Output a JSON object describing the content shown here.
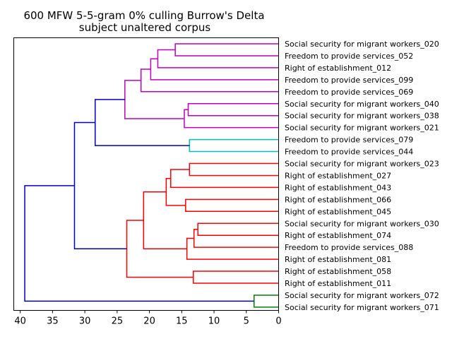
{
  "chart_data": {
    "type": "dendrogram",
    "title_line1": "600 MFW 5-5-gram 0% culling Burrow's Delta",
    "title_line2": "subject unaltered corpus",
    "xlim": [
      41,
      0
    ],
    "xticks": [
      "40",
      "35",
      "30",
      "25",
      "20",
      "15",
      "10",
      "5",
      "0"
    ],
    "leaves": [
      "Social security for migrant workers_020",
      "Freedom to provide services_052",
      "Right of establishment_012",
      "Freedom to provide services_099",
      "Freedom to provide services_069",
      "Social security for migrant workers_040",
      "Social security for migrant workers_038",
      "Social security for migrant workers_021",
      "Freedom to provide services_079",
      "Freedom to provide services_044",
      "Social security for migrant workers_023",
      "Right of establishment_027",
      "Right of establishment_043",
      "Right of establishment_066",
      "Right of establishment_045",
      "Social security for migrant workers_030",
      "Right of establishment_074",
      "Freedom to provide services_088",
      "Right of establishment_081",
      "Right of establishment_058",
      "Right of establishment_011",
      "Social security for migrant workers_072",
      "Social security for migrant workers_071"
    ],
    "colors": {
      "magenta": "#bf00bf",
      "cyan": "#00bfbf",
      "red": "#ff0000",
      "green": "#008000",
      "blue": "#0000cc"
    },
    "links": [
      {
        "a": 0,
        "b": 1,
        "h": 16.0,
        "c": "magenta"
      },
      {
        "a": "L0",
        "b": 2,
        "h": 18.7,
        "c": "magenta"
      },
      {
        "a": "L1",
        "b": 3,
        "h": 19.8,
        "c": "magenta"
      },
      {
        "a": "L2",
        "b": 4,
        "h": 21.3,
        "c": "magenta"
      },
      {
        "a": 5,
        "b": 6,
        "h": 14.0,
        "c": "magenta"
      },
      {
        "a": "L4",
        "b": 7,
        "h": 14.6,
        "c": "magenta"
      },
      {
        "a": "L3",
        "b": "L5",
        "h": 23.8,
        "c": "magenta"
      },
      {
        "a": 8,
        "b": 9,
        "h": 13.8,
        "c": "cyan"
      },
      {
        "a": "L6",
        "b": "L7",
        "h": 28.4,
        "c": "blue"
      },
      {
        "a": 10,
        "b": 11,
        "h": 13.8,
        "c": "red"
      },
      {
        "a": "L9",
        "b": 12,
        "h": 16.7,
        "c": "red"
      },
      {
        "a": 13,
        "b": 14,
        "h": 14.4,
        "c": "red"
      },
      {
        "a": "L10",
        "b": "L11",
        "h": 17.4,
        "c": "red"
      },
      {
        "a": 15,
        "b": 16,
        "h": 12.5,
        "c": "red"
      },
      {
        "a": "L13",
        "b": 17,
        "h": 13.1,
        "c": "red"
      },
      {
        "a": "L14",
        "b": 18,
        "h": 14.2,
        "c": "red"
      },
      {
        "a": "L12",
        "b": "L15",
        "h": 20.9,
        "c": "red"
      },
      {
        "a": 19,
        "b": 20,
        "h": 13.2,
        "c": "red"
      },
      {
        "a": "L16",
        "b": "L17",
        "h": 23.5,
        "c": "red"
      },
      {
        "a": "L8",
        "b": "L18",
        "h": 31.6,
        "c": "blue"
      },
      {
        "a": 21,
        "b": 22,
        "h": 3.8,
        "c": "green"
      },
      {
        "a": "L19",
        "b": "L20",
        "h": 39.3,
        "c": "blue"
      }
    ]
  }
}
